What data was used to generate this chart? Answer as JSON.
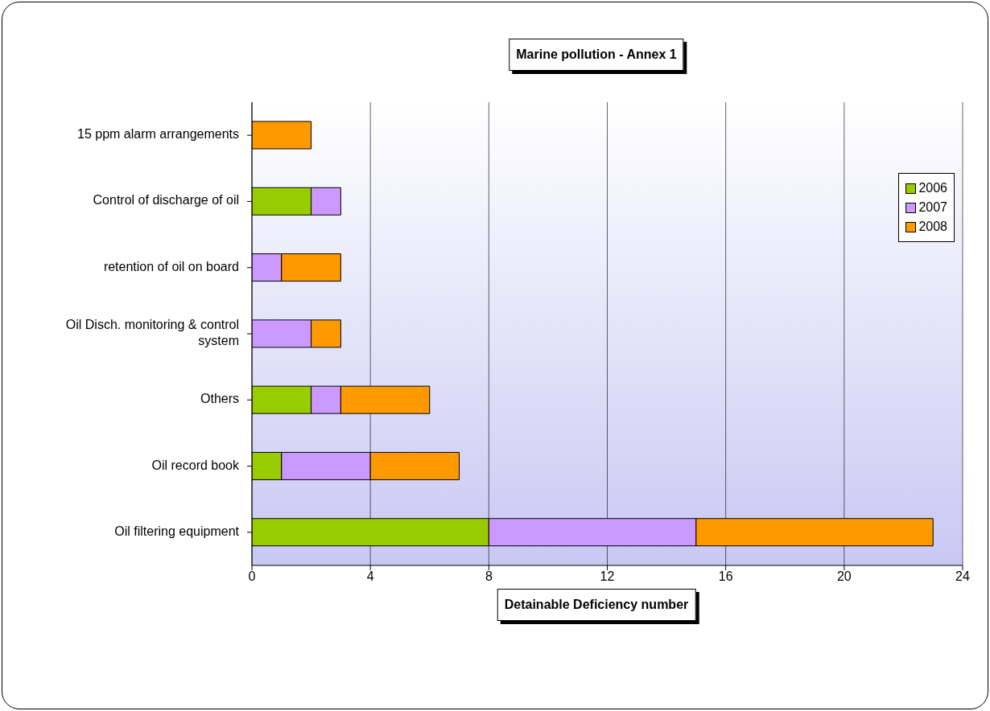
{
  "chart_data": {
    "type": "bar",
    "orientation": "horizontal",
    "stacked": true,
    "title": "Marine pollution - Annex 1",
    "xlabel": "Detainable Deficiency number",
    "categories": [
      "15 ppm alarm arrangements",
      "Control of discharge of oil",
      "retention of oil on board",
      "Oil Disch. monitoring & control system",
      "Others",
      "Oil record book",
      "Oil filtering equipment"
    ],
    "series": [
      {
        "name": "2006",
        "color": "#99cc00",
        "values": [
          0,
          2,
          0,
          0,
          2,
          1,
          8
        ]
      },
      {
        "name": "2007",
        "color": "#cc99ff",
        "values": [
          0,
          1,
          1,
          2,
          1,
          3,
          7
        ]
      },
      {
        "name": "2008",
        "color": "#ff9900",
        "values": [
          2,
          0,
          2,
          1,
          3,
          3,
          8
        ]
      }
    ],
    "xlim": [
      0,
      24
    ],
    "xticks": [
      0,
      4,
      8,
      12,
      16,
      20,
      24
    ],
    "grid": "x",
    "legend": "top right"
  }
}
